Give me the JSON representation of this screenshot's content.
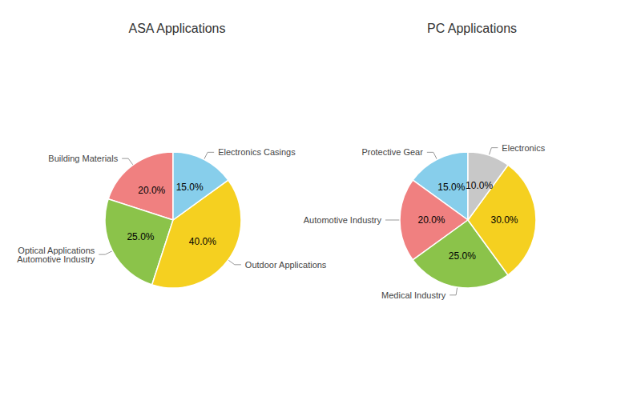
{
  "chart_data": [
    {
      "type": "pie",
      "title": "ASA Applications",
      "categories": [
        "Building Materials",
        "Optical Applications\nAutomotive Industry",
        "Outdoor Applications",
        "Electronics Casings"
      ],
      "values": [
        20.0,
        25.0,
        40.0,
        15.0
      ],
      "value_labels": [
        "20.0%",
        "25.0%",
        "40.0%",
        "15.0%"
      ],
      "colors": [
        "#f08080",
        "#8bc34a",
        "#f5d020",
        "#87ceeb"
      ],
      "data_labels": true
    },
    {
      "type": "pie",
      "title": "PC Applications",
      "categories": [
        "Protective Gear",
        "Automotive Industry",
        "Medical Industry",
        null,
        "Electronics"
      ],
      "values": [
        15.0,
        20.0,
        25.0,
        30.0,
        10.0
      ],
      "value_labels": [
        "15.0%",
        "20.0%",
        "25.0%",
        "30.0%",
        "10.0%"
      ],
      "colors": [
        "#87ceeb",
        "#f08080",
        "#8bc34a",
        "#f5d020",
        "#c8c8c8"
      ],
      "data_labels": true
    }
  ]
}
